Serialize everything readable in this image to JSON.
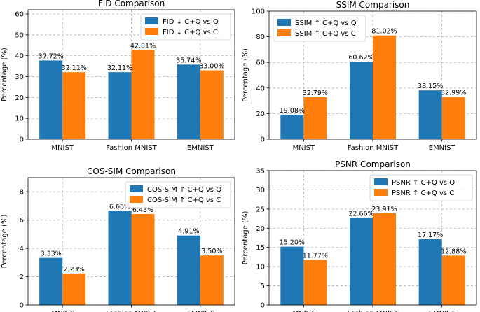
{
  "colors": {
    "series_a": "#1f77b4",
    "series_b": "#ff7f0e"
  },
  "chart_data": [
    {
      "type": "bar",
      "title": "FID Comparison",
      "xlabel": "",
      "ylabel": "Percentage (%)",
      "categories": [
        "MNIST",
        "Fashion MNIST",
        "EMNIST"
      ],
      "ylim": [
        0,
        62
      ],
      "yticks": [
        0,
        10,
        20,
        30,
        40,
        50,
        60
      ],
      "legend_position": "top-right",
      "series": [
        {
          "name": "FID ↓ C+Q vs Q",
          "values": [
            37.72,
            32.11,
            35.74
          ],
          "labels": [
            "37.72%",
            "32.11%",
            "35.74%"
          ]
        },
        {
          "name": "FID ↓ C+Q vs C",
          "values": [
            32.11,
            42.81,
            33.0
          ],
          "labels": [
            "32.11%",
            "42.81%",
            "33.00%"
          ]
        }
      ]
    },
    {
      "type": "bar",
      "title": "SSIM Comparison",
      "xlabel": "",
      "ylabel": "Percentage (%)",
      "categories": [
        "MNIST",
        "Fashion MNIST",
        "EMNIST"
      ],
      "ylim": [
        0,
        100
      ],
      "yticks": [
        0,
        20,
        40,
        60,
        80,
        100
      ],
      "legend_position": "top-left",
      "series": [
        {
          "name": "SSIM ↑ C+Q vs Q",
          "values": [
            19.08,
            60.62,
            38.15
          ],
          "labels": [
            "19.08%",
            "60.62%",
            "38.15%"
          ]
        },
        {
          "name": "SSIM ↑ C+Q vs C",
          "values": [
            32.79,
            81.02,
            32.99
          ],
          "labels": [
            "32.79%",
            "81.02%",
            "32.99%"
          ]
        }
      ]
    },
    {
      "type": "bar",
      "title": "COS-SIM Comparison",
      "xlabel": "",
      "ylabel": "Percentage (%)",
      "categories": [
        "MNIST",
        "Fashion MNIST",
        "EMNIST"
      ],
      "ylim": [
        0,
        9
      ],
      "yticks": [
        0,
        2,
        4,
        6,
        8
      ],
      "legend_position": "top-right",
      "series": [
        {
          "name": "COS-SIM ↑ C+Q vs Q",
          "values": [
            3.33,
            6.66,
            4.91
          ],
          "labels": [
            "3.33%",
            "6.66%",
            "4.91%"
          ]
        },
        {
          "name": "COS-SIM ↑ C+Q vs C",
          "values": [
            2.23,
            6.43,
            3.5
          ],
          "labels": [
            "2.23%",
            "6.43%",
            "3.50%"
          ]
        }
      ]
    },
    {
      "type": "bar",
      "title": "PSNR Comparison",
      "xlabel": "",
      "ylabel": "Percentage (%)",
      "categories": [
        "MNIST",
        "Fashion MNIST",
        "EMNIST"
      ],
      "ylim": [
        0,
        35
      ],
      "yticks": [
        0,
        5,
        10,
        15,
        20,
        25,
        30,
        35
      ],
      "legend_position": "top-right",
      "series": [
        {
          "name": "PSNR ↑ C+Q vs Q",
          "values": [
            15.2,
            22.66,
            17.17
          ],
          "labels": [
            "15.20%",
            "22.66%",
            "17.17%"
          ]
        },
        {
          "name": "PSNR ↑ C+Q vs C",
          "values": [
            11.77,
            23.91,
            12.88
          ],
          "labels": [
            "11.77%",
            "23.91%",
            "12.88%"
          ]
        }
      ]
    }
  ]
}
